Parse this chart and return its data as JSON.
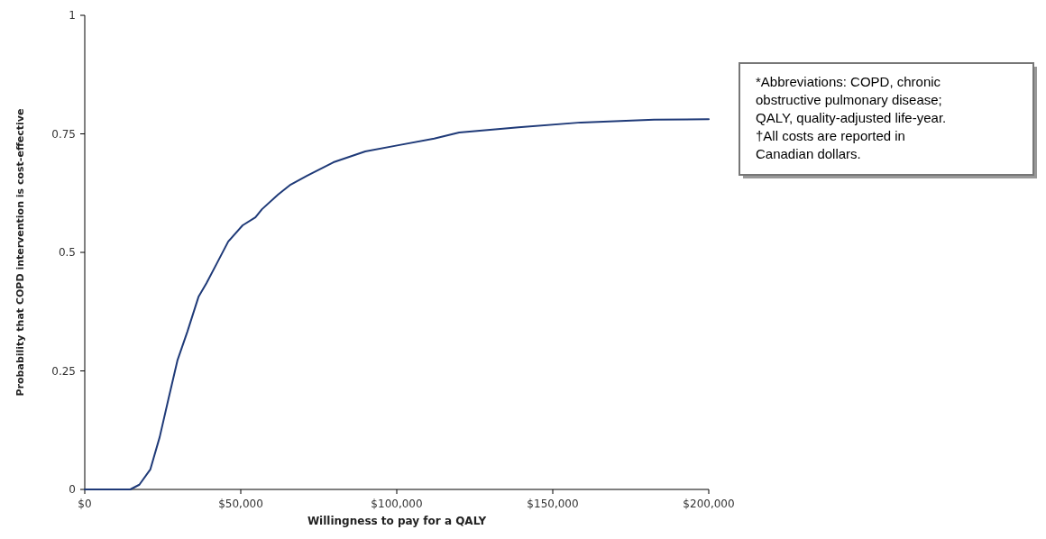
{
  "chart_data": {
    "type": "line",
    "xlabel": "Willingness to pay for a QALY",
    "ylabel": "Probability that COPD intervention is cost-effective",
    "xlim": [
      0,
      200000
    ],
    "ylim": [
      0,
      1
    ],
    "xticks": [
      {
        "value": 0,
        "label": "$0"
      },
      {
        "value": 50000,
        "label": "$50,000"
      },
      {
        "value": 100000,
        "label": "$100,000"
      },
      {
        "value": 150000,
        "label": "$150,000"
      },
      {
        "value": 200000,
        "label": "$200,000"
      }
    ],
    "yticks": [
      0,
      0.25,
      0.5,
      0.75,
      1
    ],
    "series": [
      {
        "color": "#1f3a78",
        "x": [
          0,
          14600,
          17500,
          21000,
          24000,
          26800,
          29700,
          32900,
          36500,
          39000,
          42200,
          46000,
          50600,
          54700,
          56800,
          62000,
          66000,
          71300,
          79700,
          89900,
          100500,
          112000,
          120000,
          139000,
          159000,
          182500,
          200000
        ],
        "values": [
          0,
          0,
          0.01,
          0.042,
          0.11,
          0.19,
          0.272,
          0.333,
          0.407,
          0.435,
          0.475,
          0.523,
          0.557,
          0.574,
          0.591,
          0.622,
          0.643,
          0.662,
          0.69,
          0.713,
          0.726,
          0.74,
          0.753,
          0.764,
          0.774,
          0.78,
          0.781
        ]
      }
    ],
    "annotations": [
      "*Abbreviations: COPD, chronic obstructive pulmonary disease; QALY, quality-adjusted life-year.",
      "†All costs are reported in Canadian dollars."
    ],
    "grid": false,
    "marker": "none",
    "line_style": "solid"
  }
}
